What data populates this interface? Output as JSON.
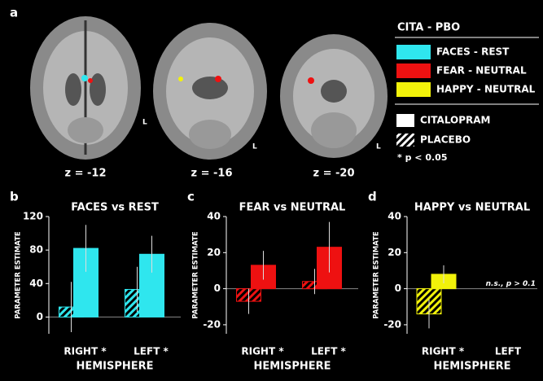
{
  "figure": {
    "panel": "a",
    "slices": [
      "z = -12",
      "z = -16",
      "z = -20"
    ],
    "orientation": "L"
  },
  "legend": {
    "title": "CITA - PBO",
    "contrasts": [
      {
        "label": "FACES - REST",
        "color": "#2fe6ee"
      },
      {
        "label": "FEAR - NEUTRAL",
        "color": "#ee1111"
      },
      {
        "label": "HAPPY - NEUTRAL",
        "color": "#f2f20a"
      }
    ],
    "conditions": [
      {
        "label": "CITALOPRAM",
        "hatch": false
      },
      {
        "label": "PLACEBO",
        "hatch": true
      }
    ],
    "note": "* p < 0.05"
  },
  "chart_data": [
    {
      "type": "bar",
      "panel": "b",
      "title": "FACES vs REST",
      "y_label": "PARAMETER ESTIMATE",
      "x_label": "HEMISPHERE",
      "categories": [
        "RIGHT *",
        "LEFT *"
      ],
      "ylim": [
        -20,
        120
      ],
      "yticks": [
        0,
        40,
        80,
        120
      ],
      "series": [
        {
          "hatch": true,
          "color": "#2fe6ee",
          "values": [
            12,
            33
          ],
          "errors": [
            30,
            27
          ]
        },
        {
          "hatch": false,
          "color": "#2fe6ee",
          "values": [
            82,
            75
          ],
          "errors": [
            28,
            22
          ]
        }
      ]
    },
    {
      "type": "bar",
      "panel": "c",
      "title": "FEAR vs NEUTRAL",
      "y_label": "PARAMETER ESTIMATE",
      "x_label": "HEMISPHERE",
      "categories": [
        "RIGHT *",
        "LEFT *"
      ],
      "ylim": [
        -25,
        40
      ],
      "yticks": [
        -20,
        0,
        20,
        40
      ],
      "series": [
        {
          "hatch": true,
          "color": "#ee1111",
          "values": [
            -7,
            4
          ],
          "errors": [
            7,
            7
          ]
        },
        {
          "hatch": false,
          "color": "#ee1111",
          "values": [
            13,
            23
          ],
          "errors": [
            8,
            14
          ]
        }
      ]
    },
    {
      "type": "bar",
      "panel": "d",
      "title": "HAPPY vs NEUTRAL",
      "y_label": "PARAMETER ESTIMATE",
      "x_label": "HEMISPHERE",
      "categories": [
        "RIGHT *",
        "LEFT"
      ],
      "ylim": [
        -25,
        40
      ],
      "yticks": [
        -20,
        0,
        20,
        40
      ],
      "annotation": "n.s., p > 0.1",
      "series": [
        {
          "hatch": true,
          "color": "#f2f20a",
          "values": [
            -14,
            null
          ],
          "errors": [
            8,
            null
          ]
        },
        {
          "hatch": false,
          "color": "#f2f20a",
          "values": [
            8,
            null
          ],
          "errors": [
            5,
            null
          ]
        }
      ]
    }
  ]
}
